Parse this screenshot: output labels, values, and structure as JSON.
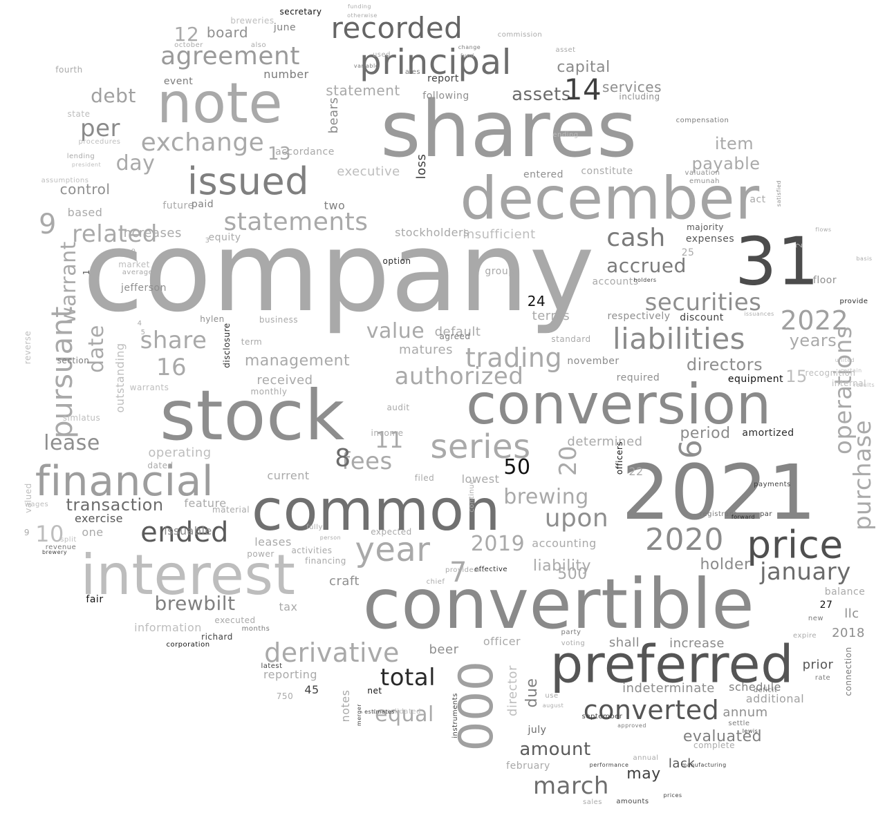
{
  "words": [
    {
      "text": "company",
      "color": "#a9a9a9"
    },
    {
      "text": "shares",
      "color": "#9a9a9a"
    },
    {
      "text": "stock",
      "color": "#8e8e8e"
    },
    {
      "text": "convertible",
      "color": "#8a8a8a"
    },
    {
      "text": "2021",
      "color": "#858585"
    },
    {
      "text": "note",
      "color": "#a9a9a9"
    },
    {
      "text": "december",
      "color": "#a4a4a4"
    },
    {
      "text": "conversion",
      "color": "#8a8a8a"
    },
    {
      "text": "common",
      "color": "#707070"
    },
    {
      "text": "interest",
      "color": "#bdbdbd"
    },
    {
      "text": "31",
      "color": "#4c4c4c"
    },
    {
      "text": "preferred",
      "color": "#555555"
    },
    {
      "text": "000",
      "color": "#a0a0a0"
    },
    {
      "text": "principal",
      "color": "#6d6d6d"
    },
    {
      "text": "issued",
      "color": "#7f7f7f"
    },
    {
      "text": "financial",
      "color": "#9d9d9d"
    },
    {
      "text": "price",
      "color": "#4f4f4f"
    },
    {
      "text": "recorded",
      "color": "#656565"
    },
    {
      "text": "agreement",
      "color": "#9a9a9a"
    },
    {
      "text": "statements",
      "color": "#a9a9a9"
    },
    {
      "text": "exchange",
      "color": "#a9a9a9"
    },
    {
      "text": "liabilities",
      "color": "#8a8a8a"
    },
    {
      "text": "2020",
      "color": "#8a8a8a"
    },
    {
      "text": "2022",
      "color": "#a0a0a0"
    },
    {
      "text": "year",
      "color": "#a9a9a9"
    },
    {
      "text": "series",
      "color": "#a9a9a9"
    },
    {
      "text": "converted",
      "color": "#555555"
    },
    {
      "text": "securities",
      "color": "#8e8e8e"
    },
    {
      "text": "ended",
      "color": "#5a5a5a"
    },
    {
      "text": "derivative",
      "color": "#a9a9a9"
    },
    {
      "text": "pursuant",
      "color": "#a9a9a9"
    },
    {
      "text": "trading",
      "color": "#a9a9a9"
    },
    {
      "text": "authorized",
      "color": "#a9a9a9"
    },
    {
      "text": "value",
      "color": "#a9a9a9"
    },
    {
      "text": "upon",
      "color": "#8e8e8e"
    },
    {
      "text": "cash",
      "color": "#7a7a7a"
    },
    {
      "text": "january",
      "color": "#6b6b6b"
    },
    {
      "text": "march",
      "color": "#6d6d6d"
    },
    {
      "text": "fees",
      "color": "#a9a9a9"
    },
    {
      "text": "2019",
      "color": "#a9a9a9"
    },
    {
      "text": "brewing",
      "color": "#a9a9a9"
    },
    {
      "text": "related",
      "color": "#a9a9a9"
    },
    {
      "text": "share",
      "color": "#a9a9a9"
    },
    {
      "text": "total",
      "color": "#2a2a2a"
    },
    {
      "text": "lease",
      "color": "#8e8e8e"
    },
    {
      "text": "operations",
      "color": "#a9a9a9"
    },
    {
      "text": "purchase",
      "color": "#a9a9a9"
    },
    {
      "text": "per",
      "color": "#8a8a8a"
    },
    {
      "text": "day",
      "color": "#a9a9a9"
    },
    {
      "text": "debt",
      "color": "#a0a0a0"
    },
    {
      "text": "warrant",
      "color": "#a9a9a9"
    },
    {
      "text": "date",
      "color": "#a9a9a9"
    },
    {
      "text": "item",
      "color": "#a9a9a9"
    },
    {
      "text": "payable",
      "color": "#a9a9a9"
    },
    {
      "text": "accrued",
      "color": "#7a7a7a"
    },
    {
      "text": "directors",
      "color": "#8e8e8e"
    },
    {
      "text": "years",
      "color": "#a9a9a9"
    },
    {
      "text": "equal",
      "color": "#a9a9a9"
    },
    {
      "text": "due",
      "color": "#7f7f7f"
    },
    {
      "text": "amount",
      "color": "#5a5a5a"
    },
    {
      "text": "brewbilt",
      "color": "#7f7f7f"
    },
    {
      "text": "transaction",
      "color": "#6b6b6b"
    },
    {
      "text": "assets",
      "color": "#6b6b6b"
    },
    {
      "text": "capital",
      "color": "#8a8a8a"
    },
    {
      "text": "management",
      "color": "#a9a9a9"
    },
    {
      "text": "holder",
      "color": "#8a8a8a"
    },
    {
      "text": "liability",
      "color": "#a9a9a9"
    },
    {
      "text": "period",
      "color": "#8a8a8a"
    },
    {
      "text": "evaluated",
      "color": "#7f7f7f"
    },
    {
      "text": "may",
      "color": "#404040"
    },
    {
      "text": "statement",
      "color": "#a9a9a9"
    },
    {
      "text": "services",
      "color": "#8e8e8e"
    },
    {
      "text": "control",
      "color": "#8e8e8e"
    },
    {
      "text": "board",
      "color": "#8e8e8e"
    },
    {
      "text": "executive",
      "color": "#bdbdbd"
    },
    {
      "text": "insufficient",
      "color": "#bdbdbd"
    },
    {
      "text": "stockholders",
      "color": "#a9a9a9"
    },
    {
      "text": "determined",
      "color": "#a9a9a9"
    },
    {
      "text": "received",
      "color": "#a9a9a9"
    },
    {
      "text": "operating",
      "color": "#bdbdbd"
    },
    {
      "text": "terms",
      "color": "#a9a9a9"
    },
    {
      "text": "default",
      "color": "#a9a9a9"
    },
    {
      "text": "matures",
      "color": "#a9a9a9"
    },
    {
      "text": "outstanding",
      "color": "#bdbdbd"
    },
    {
      "text": "based",
      "color": "#a9a9a9"
    },
    {
      "text": "increases",
      "color": "#a9a9a9"
    },
    {
      "text": "exercise",
      "color": "#555555"
    },
    {
      "text": "one",
      "color": "#a9a9a9"
    },
    {
      "text": "leases",
      "color": "#a9a9a9"
    },
    {
      "text": "accounting",
      "color": "#a9a9a9"
    },
    {
      "text": "craft",
      "color": "#8e8e8e"
    },
    {
      "text": "beer",
      "color": "#8e8e8e"
    },
    {
      "text": "officer",
      "color": "#a9a9a9"
    },
    {
      "text": "director",
      "color": "#bdbdbd"
    },
    {
      "text": "notes",
      "color": "#a9a9a9"
    },
    {
      "text": "reporting",
      "color": "#a9a9a9"
    },
    {
      "text": "information",
      "color": "#bdbdbd"
    },
    {
      "text": "tax",
      "color": "#a9a9a9"
    },
    {
      "text": "current",
      "color": "#a9a9a9"
    },
    {
      "text": "lowest",
      "color": "#a9a9a9"
    },
    {
      "text": "feature",
      "color": "#a9a9a9"
    },
    {
      "text": "issuable",
      "color": "#8a8a8a"
    },
    {
      "text": "llc",
      "color": "#8e8e8e"
    },
    {
      "text": "2018",
      "color": "#8e8e8e"
    },
    {
      "text": "shall",
      "color": "#8a8a8a"
    },
    {
      "text": "increase",
      "color": "#8a8a8a"
    },
    {
      "text": "indeterminate",
      "color": "#8e8e8e"
    },
    {
      "text": "annum",
      "color": "#8e8e8e"
    },
    {
      "text": "additional",
      "color": "#a0a0a0"
    },
    {
      "text": "prior",
      "color": "#555555"
    },
    {
      "text": "schedule",
      "color": "#7f7f7f"
    },
    {
      "text": "lack",
      "color": "#555555"
    },
    {
      "text": "july",
      "color": "#6b6b6b"
    },
    {
      "text": "february",
      "color": "#a9a9a9"
    },
    {
      "text": "balance",
      "color": "#a9a9a9"
    },
    {
      "text": "floor",
      "color": "#8e8e8e"
    },
    {
      "text": "act",
      "color": "#a9a9a9"
    },
    {
      "text": "amortized",
      "color": "#2a2a2a"
    },
    {
      "text": "equipment",
      "color": "#111111"
    },
    {
      "text": "expenses",
      "color": "#555555"
    },
    {
      "text": "majority",
      "color": "#555555"
    },
    {
      "text": "discount",
      "color": "#3f3f3f"
    },
    {
      "text": "respectively",
      "color": "#8e8e8e"
    },
    {
      "text": "required",
      "color": "#8e8e8e"
    },
    {
      "text": "november",
      "color": "#8a8a8a"
    },
    {
      "text": "group",
      "color": "#a9a9a9"
    },
    {
      "text": "accounts",
      "color": "#a9a9a9"
    },
    {
      "text": "constitute",
      "color": "#a9a9a9"
    },
    {
      "text": "entered",
      "color": "#8e8e8e"
    },
    {
      "text": "following",
      "color": "#8e8e8e"
    },
    {
      "text": "report",
      "color": "#3f3f3f"
    },
    {
      "text": "number",
      "color": "#7a7a7a"
    },
    {
      "text": "event",
      "color": "#7a7a7a"
    },
    {
      "text": "june",
      "color": "#7f7f7f"
    },
    {
      "text": "accordance",
      "color": "#a9a9a9"
    },
    {
      "text": "future",
      "color": "#a9a9a9"
    },
    {
      "text": "paid",
      "color": "#7f7f7f"
    },
    {
      "text": "equity",
      "color": "#a9a9a9"
    },
    {
      "text": "two",
      "color": "#7f7f7f"
    },
    {
      "text": "bears",
      "color": "#8a8a8a"
    },
    {
      "text": "loss",
      "color": "#3f3f3f"
    },
    {
      "text": "option",
      "color": "#2a2a2a"
    },
    {
      "text": "jefferson",
      "color": "#8e8e8e"
    },
    {
      "text": "hylen",
      "color": "#8e8e8e"
    },
    {
      "text": "business",
      "color": "#a9a9a9"
    },
    {
      "text": "executed",
      "color": "#a9a9a9"
    },
    {
      "text": "richard",
      "color": "#3f3f3f"
    },
    {
      "text": "fair",
      "color": "#111111"
    },
    {
      "text": "net",
      "color": "#111111"
    },
    {
      "text": "disclosure",
      "color": "#2a2a2a"
    },
    {
      "text": "term",
      "color": "#a9a9a9"
    },
    {
      "text": "monthly",
      "color": "#a9a9a9"
    },
    {
      "text": "income",
      "color": "#a9a9a9"
    },
    {
      "text": "audit",
      "color": "#a9a9a9"
    },
    {
      "text": "expected",
      "color": "#a9a9a9"
    },
    {
      "text": "filed",
      "color": "#a9a9a9"
    },
    {
      "text": "financing",
      "color": "#a9a9a9"
    },
    {
      "text": "activities",
      "color": "#a9a9a9"
    },
    {
      "text": "power",
      "color": "#a9a9a9"
    },
    {
      "text": "material",
      "color": "#a9a9a9"
    },
    {
      "text": "dated",
      "color": "#a9a9a9"
    },
    {
      "text": "valued",
      "color": "#bdbdbd"
    },
    {
      "text": "market",
      "color": "#bdbdbd"
    },
    {
      "text": "average",
      "color": "#a9a9a9"
    },
    {
      "text": "procedures",
      "color": "#bdbdbd"
    },
    {
      "text": "state",
      "color": "#bdbdbd"
    },
    {
      "text": "fourth",
      "color": "#a9a9a9"
    },
    {
      "text": "lending",
      "color": "#a9a9a9"
    },
    {
      "text": "president",
      "color": "#bdbdbd"
    },
    {
      "text": "assumptions",
      "color": "#bdbdbd"
    },
    {
      "text": "reverse",
      "color": "#bdbdbd"
    },
    {
      "text": "warrants",
      "color": "#bdbdbd"
    },
    {
      "text": "simlatus",
      "color": "#bdbdbd"
    },
    {
      "text": "section",
      "color": "#7a7a7a"
    },
    {
      "text": "wages",
      "color": "#bdbdbd"
    },
    {
      "text": "split",
      "color": "#bdbdbd"
    },
    {
      "text": "revenue",
      "color": "#7a7a7a"
    },
    {
      "text": "brewery",
      "color": "#3f3f3f"
    },
    {
      "text": "secretary",
      "color": "#111111"
    },
    {
      "text": "funding",
      "color": "#a9a9a9"
    },
    {
      "text": "otherwise",
      "color": "#a9a9a9"
    },
    {
      "text": "breweries",
      "color": "#bdbdbd"
    },
    {
      "text": "also",
      "color": "#a9a9a9"
    },
    {
      "text": "october",
      "color": "#a9a9a9"
    },
    {
      "text": "used",
      "color": "#a9a9a9"
    },
    {
      "text": "variable",
      "color": "#7a7a7a"
    },
    {
      "text": "ales",
      "color": "#7a7a7a"
    },
    {
      "text": "change",
      "color": "#7a7a7a"
    },
    {
      "text": "fund",
      "color": "#a9a9a9"
    },
    {
      "text": "commission",
      "color": "#a9a9a9"
    },
    {
      "text": "asset",
      "color": "#a9a9a9"
    },
    {
      "text": "including",
      "color": "#8e8e8e"
    },
    {
      "text": "compensation",
      "color": "#7a7a7a"
    },
    {
      "text": "valuation",
      "color": "#8e8e8e"
    },
    {
      "text": "emunah",
      "color": "#8e8e8e"
    },
    {
      "text": "satisfied",
      "color": "#8e8e8e"
    },
    {
      "text": "ending",
      "color": "#bdbdbd"
    },
    {
      "text": "holders",
      "color": "#3f3f3f"
    },
    {
      "text": "provide",
      "color": "#2a2a2a"
    },
    {
      "text": "basis",
      "color": "#a9a9a9"
    },
    {
      "text": "flows",
      "color": "#a9a9a9"
    },
    {
      "text": "issuances",
      "color": "#a9a9a9"
    },
    {
      "text": "standard",
      "color": "#a9a9a9"
    },
    {
      "text": "agreed",
      "color": "#7a7a7a"
    },
    {
      "text": "new",
      "color": "#7a7a7a"
    },
    {
      "text": "expire",
      "color": "#a9a9a9"
    },
    {
      "text": "connection",
      "color": "#7a7a7a"
    },
    {
      "text": "rate",
      "color": "#7a7a7a"
    },
    {
      "text": "par",
      "color": "#3f3f3f"
    },
    {
      "text": "payments",
      "color": "#3f3f3f"
    },
    {
      "text": "registrant",
      "color": "#7a7a7a"
    },
    {
      "text": "forward",
      "color": "#2a2a2a"
    },
    {
      "text": "officers",
      "color": "#111111"
    },
    {
      "text": "party",
      "color": "#7a7a7a"
    },
    {
      "text": "voting",
      "color": "#a9a9a9"
    },
    {
      "text": "use",
      "color": "#a9a9a9"
    },
    {
      "text": "august",
      "color": "#a9a9a9"
    },
    {
      "text": "annual",
      "color": "#a9a9a9"
    },
    {
      "text": "sales",
      "color": "#a9a9a9"
    },
    {
      "text": "amounts",
      "color": "#3f3f3f"
    },
    {
      "text": "prices",
      "color": "#3f3f3f"
    },
    {
      "text": "settle",
      "color": "#7a7a7a"
    },
    {
      "text": "lewis",
      "color": "#3f3f3f"
    },
    {
      "text": "months",
      "color": "#7a7a7a"
    },
    {
      "text": "corporation",
      "color": "#111111"
    },
    {
      "text": "latest",
      "color": "#3f3f3f"
    },
    {
      "text": "instruments",
      "color": "#3f3f3f"
    },
    {
      "text": "consolidated",
      "color": "#bdbdbd"
    },
    {
      "text": "estimates",
      "color": "#3f3f3f"
    },
    {
      "text": "merger",
      "color": "#3f3f3f"
    },
    {
      "text": "effective",
      "color": "#2a2a2a"
    },
    {
      "text": "chief",
      "color": "#a9a9a9"
    },
    {
      "text": "provided",
      "color": "#a9a9a9"
    },
    {
      "text": "inc",
      "color": "#a9a9a9"
    },
    {
      "text": "fully",
      "color": "#a9a9a9"
    },
    {
      "text": "person",
      "color": "#a9a9a9"
    },
    {
      "text": "continue",
      "color": "#a9a9a9"
    },
    {
      "text": "complete",
      "color": "#a9a9a9"
    },
    {
      "text": "manufacturing",
      "color": "#3f3f3f"
    },
    {
      "text": "performance",
      "color": "#3f3f3f"
    },
    {
      "text": "september",
      "color": "#3f3f3f"
    },
    {
      "text": "approved",
      "color": "#7a7a7a"
    },
    {
      "text": "deficit",
      "color": "#7a7a7a"
    },
    {
      "text": "recognition",
      "color": "#bdbdbd"
    },
    {
      "text": "internal",
      "color": "#bdbdbd"
    },
    {
      "text": "results",
      "color": "#bdbdbd"
    },
    {
      "text": "certain",
      "color": "#bdbdbd"
    },
    {
      "text": "united",
      "color": "#bdbdbd"
    },
    {
      "text": "1",
      "color": "#555555"
    },
    {
      "text": "0",
      "color": "#a9a9a9"
    },
    {
      "text": "2",
      "color": "#a9a9a9"
    },
    {
      "text": "3",
      "color": "#a9a9a9"
    },
    {
      "text": "4",
      "color": "#a9a9a9"
    },
    {
      "text": "5",
      "color": "#a9a9a9"
    },
    {
      "text": "6",
      "color": "#8e8e8e"
    },
    {
      "text": "7",
      "color": "#a9a9a9"
    },
    {
      "text": "8",
      "color": "#6b6b6b"
    },
    {
      "text": "9",
      "color": "#a9a9a9"
    },
    {
      "text": "10",
      "color": "#bdbdbd"
    },
    {
      "text": "11",
      "color": "#a9a9a9"
    },
    {
      "text": "12",
      "color": "#a9a9a9"
    },
    {
      "text": "13",
      "color": "#a9a9a9"
    },
    {
      "text": "14",
      "color": "#3f3f3f"
    },
    {
      "text": "15",
      "color": "#bdbdbd"
    },
    {
      "text": "16",
      "color": "#a9a9a9"
    },
    {
      "text": "20",
      "color": "#a9a9a9"
    },
    {
      "text": "22",
      "color": "#a9a9a9"
    },
    {
      "text": "24",
      "color": "#111111"
    },
    {
      "text": "25",
      "color": "#a9a9a9"
    },
    {
      "text": "27",
      "color": "#111111"
    },
    {
      "text": "50",
      "color": "#111111"
    },
    {
      "text": "500",
      "color": "#a9a9a9"
    },
    {
      "text": "750",
      "color": "#a9a9a9"
    },
    {
      "text": "45",
      "color": "#3f3f3f"
    },
    {
      "text": "9",
      "color": "#a9a9a9"
    }
  ]
}
